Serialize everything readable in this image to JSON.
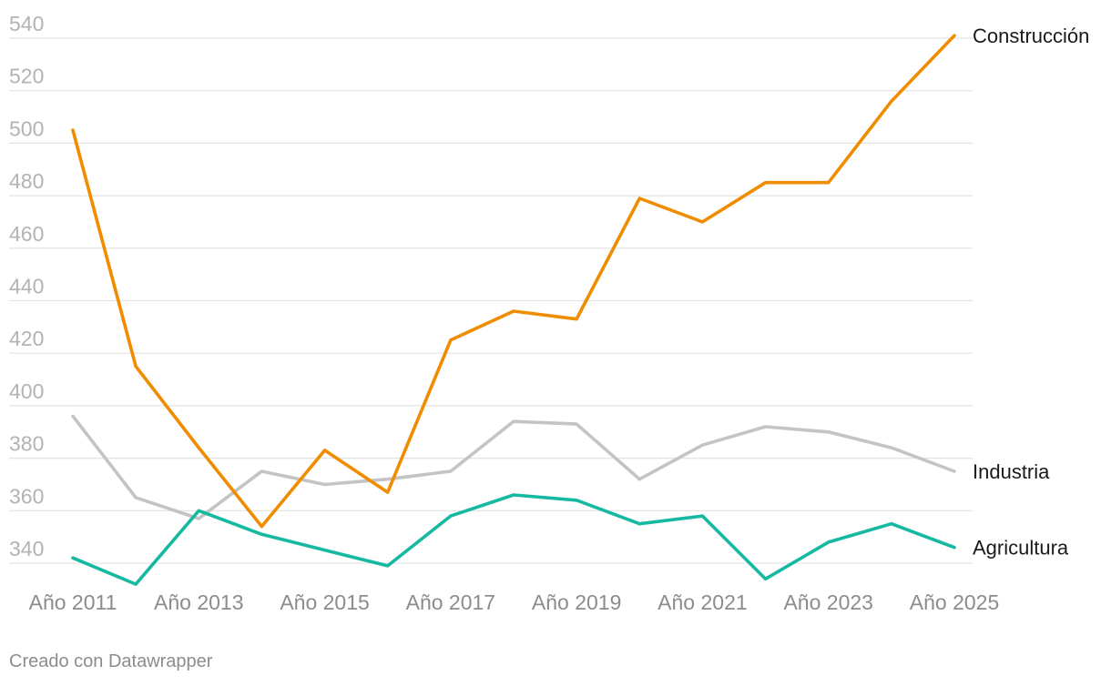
{
  "chart_data": {
    "type": "line",
    "x": [
      "Año 2011",
      "Año 2012",
      "Año 2013",
      "Año 2014",
      "Año 2015",
      "Año 2016",
      "Año 2017",
      "Año 2018",
      "Año 2019",
      "Año 2020",
      "Año 2021",
      "Año 2022",
      "Año 2023",
      "Año 2024",
      "Año 2025"
    ],
    "x_tick_labels": [
      "Año 2011",
      "Año 2013",
      "Año 2015",
      "Año 2017",
      "Año 2019",
      "Año 2021",
      "Año 2023",
      "Año 2025"
    ],
    "y_ticks": [
      340,
      360,
      380,
      400,
      420,
      440,
      460,
      480,
      500,
      520,
      540
    ],
    "ylim": [
      340,
      540
    ],
    "grid": true,
    "series": [
      {
        "name": "Construcción",
        "color": "#f08c00",
        "values": [
          505,
          415,
          384,
          354,
          383,
          367,
          425,
          436,
          433,
          479,
          470,
          485,
          485,
          516,
          541
        ]
      },
      {
        "name": "Industria",
        "color": "#c4c4c4",
        "values": [
          396,
          365,
          357,
          375,
          370,
          372,
          375,
          394,
          393,
          372,
          385,
          392,
          390,
          384,
          375
        ]
      },
      {
        "name": "Agricultura",
        "color": "#15b9a1",
        "values": [
          342,
          332,
          360,
          351,
          345,
          339,
          358,
          366,
          364,
          355,
          358,
          334,
          348,
          355,
          346
        ]
      }
    ]
  },
  "footer": {
    "credit": "Creado con Datawrapper"
  }
}
